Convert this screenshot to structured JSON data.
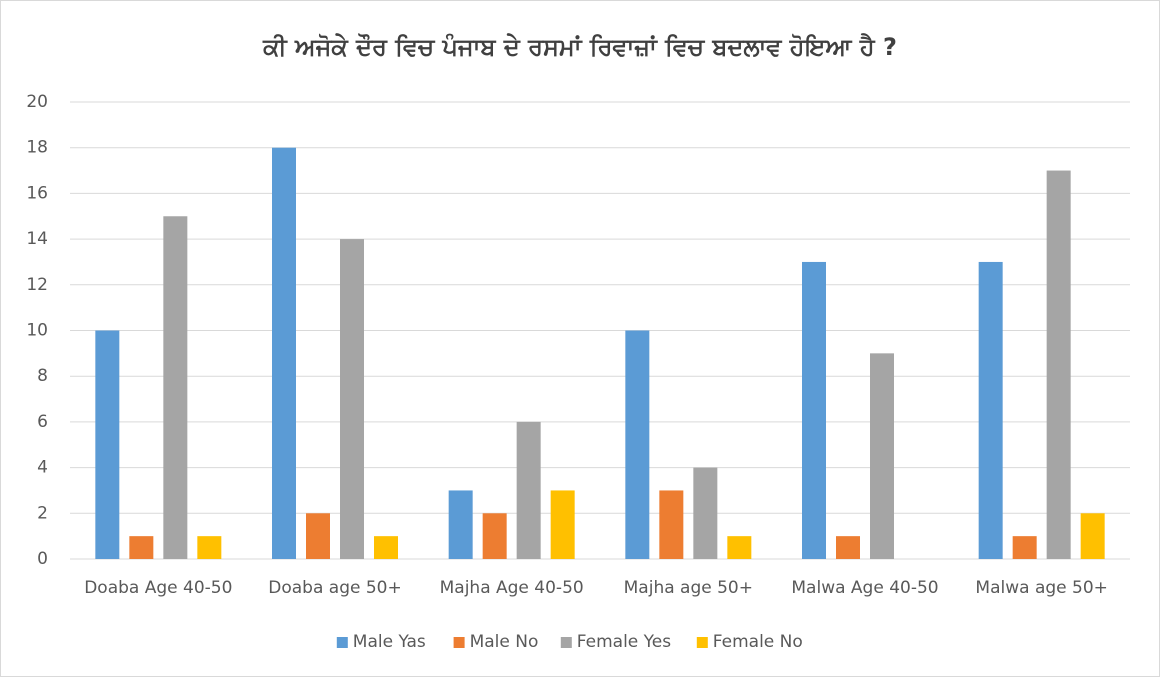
{
  "chart_data": {
    "type": "bar",
    "title": "ਕੀ ਅਜੋਕੇ ਦੌਰ ਵਿਚ ਪੰਜਾਬ ਦੇ ਰਸਮਾਂ ਰਿਵਾਜ਼ਾਂ ਵਿਚ ਬਦਲਾਵ ਹੋਇਆ ਹੈ ?",
    "categories": [
      "Doaba Age 40-50",
      "Doaba age 50+",
      "Majha Age 40-50",
      "Majha age 50+",
      "Malwa Age 40-50",
      "Malwa age 50+"
    ],
    "series": [
      {
        "name": "Male Yas",
        "color": "#5b9bd5",
        "values": [
          10,
          18,
          3,
          10,
          13,
          13
        ]
      },
      {
        "name": "Male No",
        "color": "#ed7d31",
        "values": [
          1,
          2,
          2,
          3,
          1,
          1
        ]
      },
      {
        "name": "Female Yes",
        "color": "#a5a5a5",
        "values": [
          15,
          14,
          6,
          4,
          9,
          17
        ]
      },
      {
        "name": "Female No",
        "color": "#ffc000",
        "values": [
          1,
          1,
          3,
          1,
          0,
          2
        ]
      }
    ],
    "ylim": [
      0,
      20
    ],
    "yticks": [
      0,
      2,
      4,
      6,
      8,
      10,
      12,
      14,
      16,
      18,
      20
    ],
    "grid": true,
    "legend": "bottom"
  }
}
